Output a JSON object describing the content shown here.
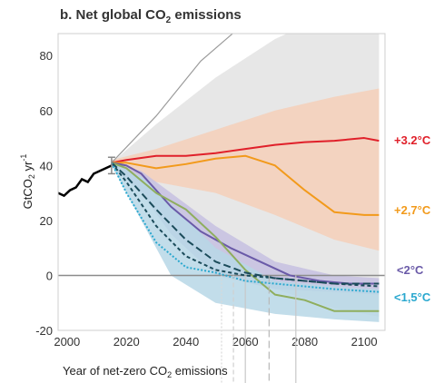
{
  "chart_data": {
    "type": "line",
    "title_prefix": "b. Net global CO",
    "title_sub": "2",
    "title_suffix": " emissions",
    "ylabel_main": "GtCO",
    "ylabel_sub": "2",
    "ylabel_unit": " yr",
    "ylabel_sup": "-1",
    "xlabel_prefix": "Year of net-zero CO",
    "xlabel_sub": "2",
    "xlabel_suffix": " emissions",
    "xlim": [
      1997,
      2107
    ],
    "ylim": [
      -20,
      88
    ],
    "x_ticks": [
      2000,
      2020,
      2040,
      2060,
      2080,
      2100
    ],
    "y_ticks": [
      80,
      60,
      40,
      20,
      0,
      -20
    ],
    "grid": false,
    "historical": {
      "x": [
        1997,
        1999,
        2001,
        2003,
        2005,
        2007,
        2009,
        2011,
        2013,
        2015
      ],
      "y": [
        30,
        29,
        31,
        32,
        35,
        34,
        37,
        38,
        39,
        40
      ],
      "color": "#000000"
    },
    "historical_range": {
      "x": 2015,
      "low": 37,
      "high": 43,
      "color": "#888888"
    },
    "bands": [
      {
        "x": [
          2015,
          2030,
          2050,
          2070,
          2090,
          2105
        ],
        "upper": [
          41,
          55,
          72,
          86,
          96,
          100
        ],
        "lower": [
          41,
          30,
          8,
          -5,
          -12,
          -15
        ],
        "color": "#e3e3e3"
      },
      {
        "x": [
          2015,
          2030,
          2050,
          2070,
          2090,
          2105
        ],
        "upper": [
          42,
          46,
          53,
          60,
          65,
          68
        ],
        "lower": [
          40,
          34,
          30,
          22,
          13,
          9
        ],
        "color": "#f4cfb9"
      },
      {
        "x": [
          2015,
          2025,
          2035,
          2050,
          2070,
          2090,
          2105
        ],
        "upper": [
          41,
          38,
          30,
          18,
          5,
          0,
          -1
        ],
        "lower": [
          40,
          30,
          15,
          0,
          -5,
          -6,
          -7
        ],
        "color": "#c6bfe0"
      },
      {
        "x": [
          2015,
          2025,
          2035,
          2050,
          2070,
          2090,
          2105
        ],
        "upper": [
          41,
          36,
          26,
          10,
          -2,
          -4,
          -5
        ],
        "lower": [
          40,
          20,
          0,
          -10,
          -14,
          -16,
          -17
        ],
        "color": "#b7d7e6"
      }
    ],
    "upper_envelope": {
      "x": [
        2015,
        2030,
        2045,
        2060
      ],
      "y": [
        41,
        58,
        78,
        92
      ],
      "color": "#9a9a9a"
    },
    "series": [
      {
        "label": "+3.2°C",
        "color": "#e0202a",
        "x": [
          2015,
          2020,
          2030,
          2040,
          2050,
          2060,
          2070,
          2080,
          2090,
          2100,
          2105
        ],
        "y": [
          41,
          42,
          43.5,
          43.5,
          44.5,
          46,
          47.5,
          48.5,
          49,
          50,
          49
        ]
      },
      {
        "label": "+2,7°C",
        "color": "#f29a1b",
        "x": [
          2015,
          2020,
          2030,
          2040,
          2050,
          2060,
          2070,
          2080,
          2090,
          2100,
          2105
        ],
        "y": [
          41,
          41,
          39,
          40.5,
          42.5,
          43.5,
          40,
          31,
          23,
          22,
          22
        ]
      },
      {
        "label": "<2°C",
        "color": "#6a5aa8",
        "x": [
          2015,
          2020,
          2025,
          2035,
          2045,
          2055,
          2065,
          2075,
          2085,
          2095,
          2105
        ],
        "y": [
          41,
          40,
          37,
          25,
          16,
          10,
          5,
          0,
          -2,
          -3,
          -3
        ]
      },
      {
        "label": "",
        "color": "#8fae5e",
        "x": [
          2015,
          2020,
          2030,
          2040,
          2050,
          2060,
          2070,
          2080,
          2090,
          2105
        ],
        "y": [
          41,
          39,
          30,
          24,
          14,
          2,
          -7,
          -9,
          -13,
          -13
        ]
      },
      {
        "label": "",
        "color": "#1b4b5a",
        "dash": "8,4",
        "x": [
          2015,
          2020,
          2030,
          2040,
          2050,
          2060,
          2070,
          2080,
          2090,
          2105
        ],
        "y": [
          41,
          36,
          24,
          13,
          5,
          1,
          -1,
          -2,
          -3,
          -3
        ]
      },
      {
        "label": "",
        "color": "#1b4b5a",
        "dash": "4,3",
        "x": [
          2015,
          2020,
          2030,
          2040,
          2050,
          2060,
          2070,
          2080,
          2090,
          2105
        ],
        "y": [
          41,
          34,
          18,
          7,
          2,
          0,
          -1,
          -2,
          -3,
          -4
        ]
      },
      {
        "label": "<1,5°C",
        "color": "#2aa8cf",
        "dash": "2,2",
        "x": [
          2015,
          2020,
          2030,
          2040,
          2050,
          2060,
          2070,
          2080,
          2090,
          2105
        ],
        "y": [
          41,
          30,
          12,
          3,
          1,
          -2,
          -3,
          -4,
          -5,
          -6
        ]
      }
    ],
    "net_zero_markers": [
      {
        "x": 2052,
        "color": "#d8d8d8",
        "dash": "2,2"
      },
      {
        "x": 2056,
        "color": "#d0d0d0",
        "dash": "5,3"
      },
      {
        "x": 2060,
        "color": "#c8c8c8",
        "dash": ""
      },
      {
        "x": 2068,
        "color": "#b8b8b8",
        "dash": "8,4"
      },
      {
        "x": 2077,
        "color": "#c8c8c8",
        "dash": ""
      }
    ]
  }
}
